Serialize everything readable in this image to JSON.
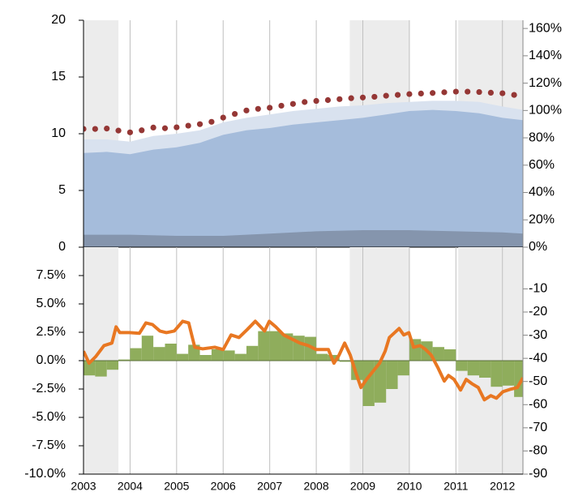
{
  "chart_data": [
    {
      "type": "area",
      "xlim": [
        2003,
        2012.44
      ],
      "xticks": [
        2003,
        2004,
        2005,
        2006,
        2007,
        2008,
        2009,
        2010,
        2011,
        2012
      ],
      "ylim": [
        0,
        20
      ],
      "yticks": [
        0,
        5,
        10,
        15,
        20
      ],
      "y2lim": [
        0,
        166
      ],
      "y2ticks": [
        {
          "value": 0,
          "label": "0%"
        },
        {
          "value": 20,
          "label": "20%"
        },
        {
          "value": 40,
          "label": "40%"
        },
        {
          "value": 60,
          "label": "60%"
        },
        {
          "value": 80,
          "label": "80%"
        },
        {
          "value": 100,
          "label": "100%"
        },
        {
          "value": 120,
          "label": "120%"
        },
        {
          "value": 140,
          "label": "140%"
        },
        {
          "value": 160,
          "label": "160%"
        }
      ],
      "grid": true,
      "shaded_periods": [
        [
          2003,
          2003.75
        ],
        [
          2008.72,
          2010
        ],
        [
          2011.05,
          2012.44
        ]
      ],
      "series": [
        {
          "type": "area",
          "color": "#d9e2ef",
          "x": [
            2003,
            2003.5,
            2004,
            2004.5,
            2005,
            2005.5,
            2006,
            2006.5,
            2007,
            2007.5,
            2008,
            2008.5,
            2009,
            2009.5,
            2010,
            2010.5,
            2011,
            2011.5,
            2012,
            2012.44
          ],
          "values": [
            9.5,
            9.5,
            9.3,
            9.8,
            10.0,
            10.3,
            11.0,
            11.4,
            11.7,
            12.0,
            12.2,
            12.4,
            12.5,
            12.7,
            12.8,
            12.9,
            12.9,
            12.8,
            12.4,
            12.1
          ]
        },
        {
          "type": "area",
          "color": "#a5bcdb",
          "x": [
            2003,
            2003.5,
            2004,
            2004.5,
            2005,
            2005.5,
            2006,
            2006.5,
            2007,
            2007.5,
            2008,
            2008.5,
            2009,
            2009.5,
            2010,
            2010.5,
            2011,
            2011.5,
            2012,
            2012.44
          ],
          "values": [
            8.3,
            8.4,
            8.2,
            8.6,
            8.8,
            9.2,
            9.9,
            10.3,
            10.5,
            10.8,
            11.0,
            11.2,
            11.4,
            11.7,
            12.0,
            12.1,
            12.0,
            11.8,
            11.4,
            11.2
          ]
        },
        {
          "type": "area",
          "color": "#8595ad",
          "x": [
            2003,
            2004,
            2005,
            2006,
            2007,
            2008,
            2009,
            2010,
            2011,
            2012,
            2012.44
          ],
          "values": [
            1.1,
            1.1,
            1.0,
            1.0,
            1.2,
            1.4,
            1.5,
            1.5,
            1.4,
            1.3,
            1.2
          ]
        },
        {
          "type": "scatter",
          "axis": "y2",
          "color": "#953735",
          "x": [
            2003,
            2003.25,
            2003.5,
            2003.75,
            2004,
            2004.25,
            2004.5,
            2004.75,
            2005,
            2005.25,
            2005.5,
            2005.75,
            2006,
            2006.25,
            2006.5,
            2006.75,
            2007,
            2007.25,
            2007.5,
            2007.75,
            2008,
            2008.25,
            2008.5,
            2008.75,
            2009,
            2009.25,
            2009.5,
            2009.75,
            2010,
            2010.25,
            2010.5,
            2010.75,
            2011,
            2011.25,
            2011.5,
            2011.75,
            2012,
            2012.25
          ],
          "values": [
            86.5,
            86.5,
            86.8,
            85.3,
            84.0,
            85.5,
            87.5,
            87.0,
            87.7,
            88.9,
            90.0,
            91.7,
            94.8,
            97.5,
            100.0,
            101.2,
            102.0,
            103.5,
            104.8,
            106.2,
            107.0,
            107.6,
            108.3,
            109.0,
            109.5,
            110.0,
            110.8,
            111.4,
            112.0,
            112.4,
            112.8,
            113.3,
            113.8,
            113.8,
            113.5,
            113.0,
            112.6,
            111.4
          ]
        }
      ]
    },
    {
      "type": "bar",
      "xlim": [
        2003,
        2012.44
      ],
      "xticks": [
        2003,
        2004,
        2005,
        2006,
        2007,
        2008,
        2009,
        2010,
        2011,
        2012
      ],
      "ylim": [
        -10,
        10
      ],
      "yticks": [
        {
          "value": -10,
          "label": "-10.0%"
        },
        {
          "value": -7.5,
          "label": "-7.5%"
        },
        {
          "value": -5,
          "label": "-5.0%"
        },
        {
          "value": -2.5,
          "label": "-2.5%"
        },
        {
          "value": 0,
          "label": "0.0%"
        },
        {
          "value": 2.5,
          "label": "2.5%"
        },
        {
          "value": 5,
          "label": "5.0%"
        },
        {
          "value": 7.5,
          "label": "7.5%"
        }
      ],
      "y2lim": [
        -90,
        8
      ],
      "y2ticks": [
        -90,
        -80,
        -70,
        -60,
        -50,
        -40,
        -30,
        -20,
        -10
      ],
      "grid": true,
      "shaded_periods": [
        [
          2003,
          2003.75
        ],
        [
          2008.72,
          2010
        ],
        [
          2011.05,
          2012.44
        ]
      ],
      "series": [
        {
          "type": "bar",
          "color": "#8fad5c",
          "x": [
            2003,
            2003.25,
            2003.5,
            2003.75,
            2004,
            2004.25,
            2004.5,
            2004.75,
            2005,
            2005.25,
            2005.5,
            2005.75,
            2006,
            2006.25,
            2006.5,
            2006.75,
            2007,
            2007.25,
            2007.5,
            2007.75,
            2008,
            2008.25,
            2008.5,
            2008.75,
            2009,
            2009.25,
            2009.5,
            2009.75,
            2010,
            2010.25,
            2010.5,
            2010.75,
            2011,
            2011.25,
            2011.5,
            2011.75,
            2012,
            2012.25
          ],
          "values": [
            -1.3,
            -1.4,
            -0.8,
            0.1,
            1.1,
            2.2,
            1.2,
            1.5,
            0.6,
            1.4,
            0.5,
            1.0,
            0.9,
            0.6,
            1.3,
            2.6,
            2.6,
            2.4,
            2.2,
            2.1,
            0.6,
            0.5,
            -0.1,
            -1.7,
            -4.0,
            -3.7,
            -2.5,
            -1.3,
            1.9,
            1.7,
            1.2,
            1.0,
            -0.9,
            -1.3,
            -1.5,
            -2.3,
            -2.2,
            -3.2
          ]
        },
        {
          "type": "line",
          "axis": "y2",
          "color": "#e87722",
          "x": [
            2003.0,
            2003.12,
            2003.26,
            2003.44,
            2003.61,
            2003.7,
            2003.78,
            2003.99,
            2004.2,
            2004.34,
            2004.48,
            2004.64,
            2004.78,
            2004.95,
            2005.13,
            2005.26,
            2005.39,
            2005.56,
            2005.82,
            2006.0,
            2006.17,
            2006.34,
            2006.52,
            2006.69,
            2006.89,
            2006.99,
            2007.13,
            2007.3,
            2007.48,
            2007.65,
            2007.83,
            2008.0,
            2008.26,
            2008.38,
            2008.49,
            2008.61,
            2008.73,
            2008.84,
            2008.96,
            2009.08,
            2009.22,
            2009.36,
            2009.48,
            2009.57,
            2009.78,
            2009.88,
            2009.99,
            2010.09,
            2010.23,
            2010.35,
            2010.47,
            2010.61,
            2010.75,
            2010.84,
            2010.96,
            2011.1,
            2011.22,
            2011.34,
            2011.48,
            2011.61,
            2011.75,
            2011.87,
            2012.01,
            2012.18,
            2012.32,
            2012.44
          ],
          "values": [
            -36.9,
            -42.1,
            -39.3,
            -34.5,
            -33.4,
            -26.4,
            -28.9,
            -28.9,
            -29.2,
            -24.7,
            -25.4,
            -28.2,
            -28.9,
            -28.2,
            -24.0,
            -24.7,
            -35.2,
            -35.9,
            -35.2,
            -36.2,
            -29.9,
            -31.0,
            -27.5,
            -24.0,
            -28.2,
            -24.0,
            -26.4,
            -29.9,
            -31.7,
            -33.4,
            -34.5,
            -36.2,
            -36.2,
            -42.1,
            -38.6,
            -33.4,
            -38.6,
            -45.6,
            -52.6,
            -49.1,
            -45.6,
            -42.1,
            -36.9,
            -31.0,
            -27.1,
            -29.9,
            -28.9,
            -35.2,
            -34.5,
            -36.2,
            -38.6,
            -43.9,
            -49.8,
            -47.4,
            -49.1,
            -53.7,
            -49.1,
            -50.9,
            -52.6,
            -57.9,
            -56.1,
            -57.2,
            -54.4,
            -53.3,
            -52.6,
            -48.4
          ]
        }
      ]
    }
  ]
}
